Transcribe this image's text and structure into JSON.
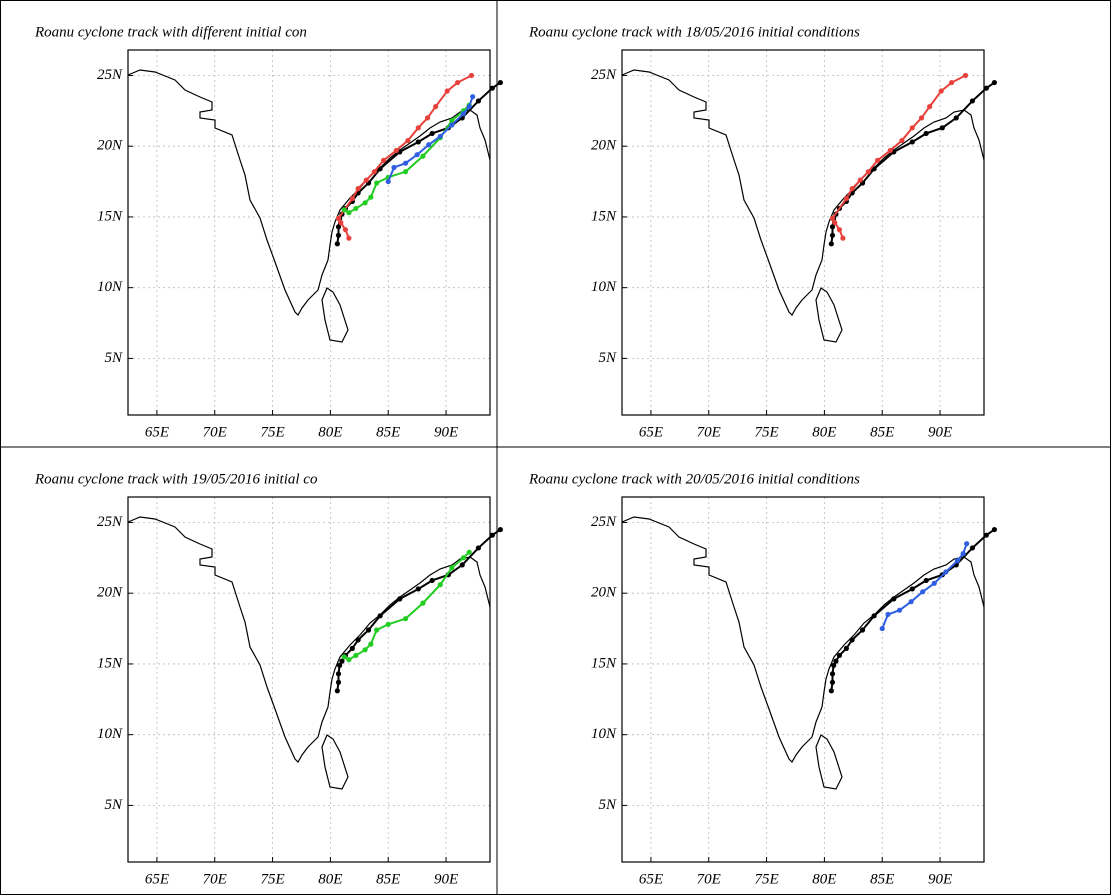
{
  "chart_data": [
    {
      "type": "line",
      "title": "Roanu cyclone track with different initial con",
      "xlim": [
        62.5,
        93.8
      ],
      "ylim": [
        1,
        26.8
      ],
      "grid": true,
      "xticks": [
        {
          "value": 65,
          "label": "65E"
        },
        {
          "value": 70,
          "label": "70E"
        },
        {
          "value": 75,
          "label": "75E"
        },
        {
          "value": 80,
          "label": "80E"
        },
        {
          "value": 85,
          "label": "85E"
        },
        {
          "value": 90,
          "label": "90E"
        }
      ],
      "yticks": [
        {
          "value": 5,
          "label": "5N"
        },
        {
          "value": 10,
          "label": "10N"
        },
        {
          "value": 15,
          "label": "15N"
        },
        {
          "value": 20,
          "label": "20N"
        },
        {
          "value": 25,
          "label": "25N"
        }
      ],
      "series": [
        {
          "color": "#000000",
          "x": [
            80.6,
            80.7,
            80.7,
            80.8,
            81.0,
            81.3,
            81.9,
            82.4,
            83.3,
            84.3,
            86.0,
            87.6,
            88.8,
            90.2,
            91.4,
            92.8,
            94.0,
            94.7
          ],
          "values": [
            13.1,
            13.7,
            14.3,
            14.9,
            15.2,
            15.6,
            16.1,
            16.7,
            17.4,
            18.4,
            19.6,
            20.3,
            20.9,
            21.3,
            22.0,
            23.2,
            24.1,
            24.5
          ]
        },
        {
          "color": "#e8413c",
          "x": [
            81.6,
            81.3,
            80.9,
            80.7,
            81.9,
            82.4,
            83.1,
            83.8,
            84.6,
            85.7,
            86.7,
            87.6,
            88.4,
            89.1,
            90.1,
            91.0,
            92.2
          ],
          "values": [
            13.5,
            14.1,
            14.6,
            14.9,
            16.3,
            17.0,
            17.6,
            18.2,
            19.0,
            19.7,
            20.4,
            21.3,
            22.0,
            22.8,
            23.9,
            24.5,
            25.0
          ]
        },
        {
          "color": "#22cc22",
          "x": [
            81.2,
            81.6,
            82.2,
            83.0,
            83.5,
            84.0,
            85.0,
            86.5,
            88.0,
            89.5,
            90.5,
            91.5,
            92.0
          ],
          "values": [
            15.5,
            15.3,
            15.6,
            16.0,
            16.4,
            17.4,
            17.8,
            18.2,
            19.3,
            20.6,
            21.8,
            22.5,
            22.9
          ]
        },
        {
          "color": "#2f5fe0",
          "x": [
            85.0,
            85.5,
            86.5,
            87.5,
            88.5,
            89.5,
            90.5,
            91.5,
            92.0,
            92.3
          ],
          "values": [
            17.5,
            18.5,
            18.8,
            19.4,
            20.1,
            20.7,
            21.5,
            22.3,
            22.8,
            23.5
          ]
        }
      ]
    },
    {
      "type": "line",
      "title": "Roanu cyclone track with 18/05/2016 initial conditions",
      "xlim": [
        62.5,
        93.8
      ],
      "ylim": [
        1,
        26.8
      ],
      "grid": true,
      "xticks": [
        {
          "value": 65,
          "label": "65E"
        },
        {
          "value": 70,
          "label": "70E"
        },
        {
          "value": 75,
          "label": "75E"
        },
        {
          "value": 80,
          "label": "80E"
        },
        {
          "value": 85,
          "label": "85E"
        },
        {
          "value": 90,
          "label": "90E"
        }
      ],
      "yticks": [
        {
          "value": 5,
          "label": "5N"
        },
        {
          "value": 10,
          "label": "10N"
        },
        {
          "value": 15,
          "label": "15N"
        },
        {
          "value": 20,
          "label": "20N"
        },
        {
          "value": 25,
          "label": "25N"
        }
      ],
      "series": [
        {
          "color": "#000000",
          "x": [
            80.6,
            80.7,
            80.7,
            80.8,
            81.0,
            81.3,
            81.9,
            82.4,
            83.3,
            84.3,
            86.0,
            87.6,
            88.8,
            90.2,
            91.4,
            92.8,
            94.0,
            94.7
          ],
          "values": [
            13.1,
            13.7,
            14.3,
            14.9,
            15.2,
            15.6,
            16.1,
            16.7,
            17.4,
            18.4,
            19.6,
            20.3,
            20.9,
            21.3,
            22.0,
            23.2,
            24.1,
            24.5
          ]
        },
        {
          "color": "#e8413c",
          "x": [
            81.6,
            81.3,
            80.9,
            80.7,
            81.9,
            82.4,
            83.1,
            83.8,
            84.6,
            85.7,
            86.7,
            87.6,
            88.4,
            89.1,
            90.1,
            91.0,
            92.2
          ],
          "values": [
            13.5,
            14.1,
            14.6,
            14.9,
            16.3,
            17.0,
            17.6,
            18.2,
            19.0,
            19.7,
            20.4,
            21.3,
            22.0,
            22.8,
            23.9,
            24.5,
            25.0
          ]
        }
      ]
    },
    {
      "type": "line",
      "title": "Roanu cyclone track with 19/05/2016 initial co",
      "xlim": [
        62.5,
        93.8
      ],
      "ylim": [
        1,
        26.8
      ],
      "grid": true,
      "xticks": [
        {
          "value": 65,
          "label": "65E"
        },
        {
          "value": 70,
          "label": "70E"
        },
        {
          "value": 75,
          "label": "75E"
        },
        {
          "value": 80,
          "label": "80E"
        },
        {
          "value": 85,
          "label": "85E"
        },
        {
          "value": 90,
          "label": "90E"
        }
      ],
      "yticks": [
        {
          "value": 5,
          "label": "5N"
        },
        {
          "value": 10,
          "label": "10N"
        },
        {
          "value": 15,
          "label": "15N"
        },
        {
          "value": 20,
          "label": "20N"
        },
        {
          "value": 25,
          "label": "25N"
        }
      ],
      "series": [
        {
          "color": "#000000",
          "x": [
            80.6,
            80.7,
            80.7,
            80.8,
            81.0,
            81.3,
            81.9,
            82.4,
            83.3,
            84.3,
            86.0,
            87.6,
            88.8,
            90.2,
            91.4,
            92.8,
            94.0,
            94.7
          ],
          "values": [
            13.1,
            13.7,
            14.3,
            14.9,
            15.2,
            15.6,
            16.1,
            16.7,
            17.4,
            18.4,
            19.6,
            20.3,
            20.9,
            21.3,
            22.0,
            23.2,
            24.1,
            24.5
          ]
        },
        {
          "color": "#22cc22",
          "x": [
            81.2,
            81.6,
            82.2,
            83.0,
            83.5,
            84.0,
            85.0,
            86.5,
            88.0,
            89.5,
            90.5,
            91.5,
            92.0
          ],
          "values": [
            15.5,
            15.3,
            15.6,
            16.0,
            16.4,
            17.4,
            17.8,
            18.2,
            19.3,
            20.6,
            21.8,
            22.5,
            22.9
          ]
        }
      ]
    },
    {
      "type": "line",
      "title": "Roanu cyclone track with 20/05/2016 initial conditions",
      "xlim": [
        62.5,
        93.8
      ],
      "ylim": [
        1,
        26.8
      ],
      "grid": true,
      "xticks": [
        {
          "value": 65,
          "label": "65E"
        },
        {
          "value": 70,
          "label": "70E"
        },
        {
          "value": 75,
          "label": "75E"
        },
        {
          "value": 80,
          "label": "80E"
        },
        {
          "value": 85,
          "label": "85E"
        },
        {
          "value": 90,
          "label": "90E"
        }
      ],
      "yticks": [
        {
          "value": 5,
          "label": "5N"
        },
        {
          "value": 10,
          "label": "10N"
        },
        {
          "value": 15,
          "label": "15N"
        },
        {
          "value": 20,
          "label": "20N"
        },
        {
          "value": 25,
          "label": "25N"
        }
      ],
      "series": [
        {
          "color": "#000000",
          "x": [
            80.6,
            80.7,
            80.7,
            80.8,
            81.0,
            81.3,
            81.9,
            82.4,
            83.3,
            84.3,
            86.0,
            87.6,
            88.8,
            90.2,
            91.4,
            92.8,
            94.0,
            94.7
          ],
          "values": [
            13.1,
            13.7,
            14.3,
            14.9,
            15.2,
            15.6,
            16.1,
            16.7,
            17.4,
            18.4,
            19.6,
            20.3,
            20.9,
            21.3,
            22.0,
            23.2,
            24.1,
            24.5
          ]
        },
        {
          "color": "#2f5fe0",
          "x": [
            85.0,
            85.5,
            86.5,
            87.5,
            88.5,
            89.5,
            90.5,
            91.5,
            92.0,
            92.3
          ],
          "values": [
            17.5,
            18.5,
            18.8,
            19.4,
            20.1,
            20.7,
            21.5,
            22.3,
            22.8,
            23.5
          ]
        }
      ]
    }
  ]
}
